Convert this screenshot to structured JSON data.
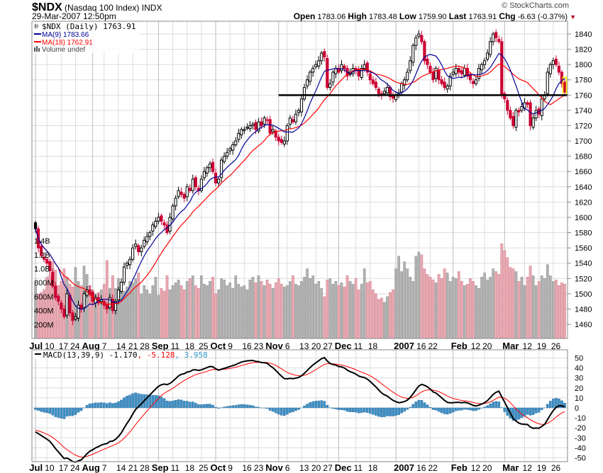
{
  "header": {
    "symbol": "$NDX",
    "name": "(Nasdaq 100 Index)",
    "exchange": "INDX",
    "datetime": "29-Mar-2007 12:50pm",
    "copyright": "© StockCharts.com",
    "open_label": "Open",
    "open": "1783.06",
    "high_label": "High",
    "high": "1783.48",
    "low_label": "Low",
    "low": "1759.90",
    "last_label": "Last",
    "last": "1763.91",
    "chg_label": "Chg",
    "chg": "-6.63 (-0.37%)"
  },
  "legend": {
    "price": "$NDX (Daily) 1763.91",
    "ma9": "MA(9) 1783.66",
    "ma18": "MA(18) 1762.91",
    "volume": "Volume undef",
    "macd_name": "MACD(13,39,9) -1.170",
    "macd_signal": ", -5.128",
    "macd_hist": ", 3.958"
  },
  "colors": {
    "up": "#000000",
    "down": "#cc0033",
    "ma9": "#000099",
    "ma18": "#ff0000",
    "vol_up": "#b0b0b0",
    "vol_down": "#e8a8b0",
    "hist": "#3d8fc6",
    "support": "#000000",
    "highlight": "#ffee00"
  },
  "chart_data": {
    "type": "candlestick",
    "price_axis": {
      "min": 1440,
      "max": 1850,
      "ticks": [
        1460,
        1480,
        1500,
        1520,
        1540,
        1560,
        1580,
        1600,
        1620,
        1640,
        1660,
        1680,
        1700,
        1720,
        1740,
        1760,
        1780,
        1800,
        1820,
        1840
      ]
    },
    "volume_axis": {
      "ticks": [
        {
          "v": 200,
          "label": "200M"
        },
        {
          "v": 400,
          "label": "400M"
        },
        {
          "v": 600,
          "label": "600M"
        },
        {
          "v": 800,
          "label": "800M"
        },
        {
          "v": 1000,
          "label": "1.0B"
        },
        {
          "v": 1200,
          "label": "1.2B"
        },
        {
          "v": 1400,
          "label": "1.4B"
        }
      ]
    },
    "macd_axis": {
      "min": -55,
      "max": 55,
      "ticks": [
        50,
        40,
        30,
        20,
        10,
        0,
        -10,
        -20,
        -30,
        -40,
        -50
      ]
    },
    "support_line": 1760,
    "x_labels": [
      {
        "i": 0,
        "t": "Jul",
        "b": true
      },
      {
        "i": 4,
        "t": "10"
      },
      {
        "i": 9,
        "t": "17"
      },
      {
        "i": 14,
        "t": "24"
      },
      {
        "i": 20,
        "t": "Aug",
        "b": true
      },
      {
        "i": 24,
        "t": "7"
      },
      {
        "i": 29,
        "t": "14"
      },
      {
        "i": 34,
        "t": "21"
      },
      {
        "i": 39,
        "t": "28"
      },
      {
        "i": 43,
        "t": "Sep",
        "b": true
      },
      {
        "i": 48,
        "t": "11"
      },
      {
        "i": 53,
        "t": "18"
      },
      {
        "i": 58,
        "t": "25"
      },
      {
        "i": 63,
        "t": "Oct",
        "b": true
      },
      {
        "i": 68,
        "t": "9"
      },
      {
        "i": 73,
        "t": "16"
      },
      {
        "i": 78,
        "t": "23"
      },
      {
        "i": 85,
        "t": "Nov",
        "b": true
      },
      {
        "i": 88,
        "t": "6"
      },
      {
        "i": 93,
        "t": "13"
      },
      {
        "i": 98,
        "t": "20"
      },
      {
        "i": 102,
        "t": "27"
      },
      {
        "i": 106,
        "t": "Dec",
        "b": true
      },
      {
        "i": 112,
        "t": "11"
      },
      {
        "i": 117,
        "t": "18"
      },
      {
        "i": 126,
        "t": "2007",
        "b": true
      },
      {
        "i": 134,
        "t": "16"
      },
      {
        "i": 138,
        "t": "22"
      },
      {
        "i": 146,
        "t": "Feb",
        "b": true
      },
      {
        "i": 153,
        "t": "12"
      },
      {
        "i": 157,
        "t": "20"
      },
      {
        "i": 164,
        "t": "Mar",
        "b": true
      },
      {
        "i": 171,
        "t": "12"
      },
      {
        "i": 176,
        "t": "19"
      },
      {
        "i": 181,
        "t": "26"
      }
    ],
    "close": [
      1585,
      1560,
      1550,
      1545,
      1540,
      1530,
      1510,
      1495,
      1490,
      1480,
      1470,
      1500,
      1475,
      1465,
      1470,
      1485,
      1480,
      1500,
      1505,
      1500,
      1490,
      1495,
      1488,
      1492,
      1485,
      1480,
      1495,
      1478,
      1490,
      1505,
      1515,
      1535,
      1540,
      1545,
      1560,
      1565,
      1555,
      1560,
      1570,
      1575,
      1580,
      1590,
      1595,
      1600,
      1595,
      1590,
      1580,
      1600,
      1615,
      1625,
      1635,
      1630,
      1625,
      1640,
      1635,
      1650,
      1640,
      1635,
      1650,
      1660,
      1665,
      1670,
      1660,
      1645,
      1650,
      1675,
      1680,
      1685,
      1690,
      1695,
      1700,
      1710,
      1715,
      1715,
      1718,
      1720,
      1722,
      1715,
      1725,
      1720,
      1730,
      1728,
      1710,
      1715,
      1705,
      1700,
      1698,
      1700,
      1720,
      1730,
      1725,
      1735,
      1740,
      1755,
      1770,
      1780,
      1790,
      1795,
      1800,
      1805,
      1815,
      1810,
      1770,
      1775,
      1790,
      1795,
      1790,
      1800,
      1795,
      1785,
      1790,
      1795,
      1792,
      1785,
      1795,
      1800,
      1790,
      1780,
      1775,
      1770,
      1762,
      1760,
      1765,
      1770,
      1758,
      1756,
      1760,
      1762,
      1775,
      1780,
      1790,
      1805,
      1825,
      1835,
      1840,
      1830,
      1805,
      1800,
      1790,
      1780,
      1795,
      1780,
      1775,
      1770,
      1772,
      1785,
      1790,
      1795,
      1790,
      1788,
      1795,
      1785,
      1780,
      1775,
      1780,
      1795,
      1800,
      1805,
      1815,
      1830,
      1840,
      1835,
      1830,
      1760,
      1755,
      1740,
      1730,
      1720,
      1740,
      1738,
      1745,
      1750,
      1748,
      1720,
      1730,
      1740,
      1735,
      1755,
      1760,
      1790,
      1800,
      1805,
      1800,
      1790,
      1775,
      1763.91
    ],
    "volume_m": [
      760,
      640,
      660,
      700,
      880,
      900,
      1100,
      980,
      760,
      820,
      1000,
      880,
      780,
      740,
      1020,
      820,
      760,
      1040,
      920,
      760,
      700,
      640,
      660,
      700,
      780,
      1120,
      720,
      900,
      720,
      860,
      780,
      680,
      740,
      820,
      800,
      860,
      940,
      640,
      760,
      700,
      640,
      760,
      880,
      620,
      720,
      680,
      900,
      700,
      760,
      800,
      840,
      760,
      700,
      820,
      860,
      900,
      760,
      720,
      900,
      780,
      760,
      820,
      880,
      640,
      700,
      860,
      840,
      760,
      800,
      720,
      900,
      780,
      740,
      760,
      700,
      840,
      880,
      800,
      900,
      820,
      760,
      840,
      780,
      720,
      800,
      860,
      780,
      740,
      760,
      820,
      900,
      780,
      760,
      820,
      880,
      1000,
      860,
      900,
      780,
      820,
      720,
      600,
      840,
      860,
      780,
      820,
      760,
      800,
      740,
      900,
      820,
      780,
      860,
      700,
      780,
      1000,
      800,
      820,
      700,
      640,
      560,
      580,
      520,
      600,
      660,
      700,
      1000,
      1180,
      960,
      1100,
      1000,
      880,
      820,
      1180,
      1240,
      1200,
      1000,
      920,
      880,
      840,
      800,
      920,
      860,
      1000,
      940,
      820,
      880,
      860,
      960,
      820,
      760,
      780,
      860,
      820,
      760,
      720,
      880,
      940,
      840,
      880,
      1000,
      960,
      920,
      1360,
      1260,
      1160,
      1020,
      1000,
      960,
      820,
      880,
      760,
      880,
      1040,
      900,
      760,
      820,
      900,
      860,
      1060,
      900,
      820,
      840,
      760,
      800,
      780
    ]
  }
}
